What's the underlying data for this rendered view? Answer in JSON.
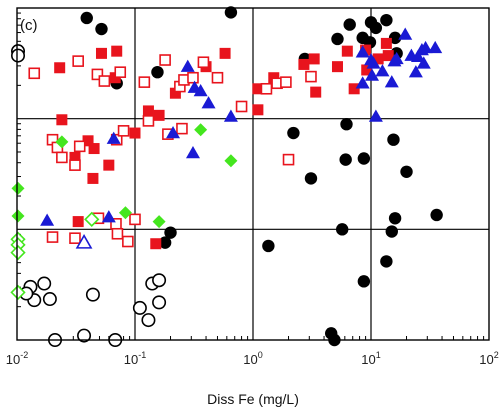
{
  "chart_data": {
    "type": "scatter",
    "panel_label": "(c)",
    "xlabel": "Diss Fe (mg/L)",
    "ylabel": "",
    "x_scale": "log",
    "xlim": [
      0.01,
      100
    ],
    "y_scale": "log",
    "ylim_decades": [
      0,
      3
    ],
    "grid": true,
    "x_ticks": [
      {
        "base": "10",
        "exp": "-2",
        "value": 0.01
      },
      {
        "base": "10",
        "exp": "-1",
        "value": 0.1
      },
      {
        "base": "10",
        "exp": "0",
        "value": 1
      },
      {
        "base": "10",
        "exp": "1",
        "value": 10
      },
      {
        "base": "10",
        "exp": "2",
        "value": 100
      }
    ],
    "series": [
      {
        "marker": "filled-circle",
        "color": "#000000",
        "points": [
          [
            0.039,
            2.91
          ],
          [
            0.052,
            2.81
          ],
          [
            0.07,
            2.32
          ],
          [
            0.155,
            2.42
          ],
          [
            0.65,
            2.96
          ],
          [
            2.75,
            2.54
          ],
          [
            5.2,
            2.72
          ],
          [
            6.6,
            2.85
          ],
          [
            8.5,
            2.73
          ],
          [
            10,
            2.87
          ],
          [
            11,
            2.82
          ],
          [
            13.5,
            2.89
          ],
          [
            16,
            2.73
          ],
          [
            9.8,
            2.69
          ],
          [
            16.5,
            2.59
          ],
          [
            15.5,
            1.81
          ],
          [
            8.7,
            1.64
          ],
          [
            6.2,
            1.95
          ],
          [
            2.2,
            1.87
          ],
          [
            3.1,
            1.46
          ],
          [
            6.1,
            1.63
          ],
          [
            5.7,
            1.0
          ],
          [
            13.5,
            0.71
          ],
          [
            20,
            1.52
          ],
          [
            36,
            1.13
          ],
          [
            16,
            1.1
          ],
          [
            15,
            0.98
          ],
          [
            1.35,
            0.85
          ],
          [
            0.2,
            0.97
          ],
          [
            0.18,
            0.88
          ],
          [
            8.7,
            0.53
          ],
          [
            4.6,
            0.06
          ],
          [
            4.9,
            0.0
          ]
        ]
      },
      {
        "marker": "open-circle",
        "color": "#000000",
        "points": [
          [
            0.0102,
            2.61
          ],
          [
            0.0102,
            2.57
          ],
          [
            0.013,
            0.48
          ],
          [
            0.017,
            0.51
          ],
          [
            0.019,
            0.37
          ],
          [
            0.014,
            0.36
          ],
          [
            0.012,
            0.42
          ],
          [
            0.044,
            0.41
          ],
          [
            0.037,
            0.04
          ],
          [
            0.021,
            0.0
          ],
          [
            0.068,
            0.0
          ],
          [
            0.11,
            0.29
          ],
          [
            0.14,
            0.51
          ],
          [
            0.16,
            0.54
          ],
          [
            0.13,
            0.18
          ],
          [
            0.16,
            0.34
          ]
        ]
      },
      {
        "marker": "filled-square",
        "color": "#e8141d",
        "points": [
          [
            0.052,
            2.59
          ],
          [
            0.07,
            2.61
          ],
          [
            0.023,
            2.46
          ],
          [
            0.068,
            2.37
          ],
          [
            0.13,
            2.07
          ],
          [
            0.1,
            1.87
          ],
          [
            0.024,
            1.99
          ],
          [
            0.04,
            1.8
          ],
          [
            0.045,
            1.73
          ],
          [
            0.031,
            1.65
          ],
          [
            0.044,
            1.46
          ],
          [
            0.06,
            1.58
          ],
          [
            0.16,
            2.03
          ],
          [
            0.22,
            2.23
          ],
          [
            0.4,
            2.47
          ],
          [
            0.58,
            2.59
          ],
          [
            1.1,
            2.27
          ],
          [
            1.5,
            2.37
          ],
          [
            2.7,
            2.49
          ],
          [
            3.3,
            2.54
          ],
          [
            5.2,
            2.47
          ],
          [
            6.3,
            2.61
          ],
          [
            9.0,
            2.62
          ],
          [
            9.2,
            2.44
          ],
          [
            11.5,
            2.54
          ],
          [
            13.5,
            2.68
          ],
          [
            14,
            2.57
          ],
          [
            7.2,
            2.27
          ],
          [
            3.4,
            2.24
          ],
          [
            1.1,
            2.08
          ],
          [
            0.033,
            1.07
          ],
          [
            0.15,
            0.87
          ]
        ]
      },
      {
        "marker": "open-square",
        "color": "#e8141d",
        "points": [
          [
            0.033,
            2.52
          ],
          [
            0.048,
            2.4
          ],
          [
            0.014,
            2.41
          ],
          [
            0.055,
            2.34
          ],
          [
            0.075,
            2.42
          ],
          [
            0.12,
            2.33
          ],
          [
            0.18,
            2.53
          ],
          [
            0.24,
            2.29
          ],
          [
            0.26,
            2.35
          ],
          [
            0.31,
            2.37
          ],
          [
            0.38,
            2.51
          ],
          [
            0.5,
            2.37
          ],
          [
            0.8,
            2.11
          ],
          [
            1.3,
            2.27
          ],
          [
            1.6,
            2.32
          ],
          [
            1.9,
            2.33
          ],
          [
            0.19,
            1.86
          ],
          [
            0.25,
            1.91
          ],
          [
            0.13,
            1.98
          ],
          [
            0.07,
            1.81
          ],
          [
            0.08,
            1.89
          ],
          [
            0.02,
            1.81
          ],
          [
            0.034,
            1.75
          ],
          [
            0.022,
            1.74
          ],
          [
            0.024,
            1.65
          ],
          [
            0.031,
            1.58
          ],
          [
            0.1,
            1.09
          ],
          [
            0.049,
            1.1
          ],
          [
            0.069,
            1.05
          ],
          [
            0.087,
            0.89
          ],
          [
            0.02,
            0.93
          ],
          [
            0.031,
            0.92
          ],
          [
            0.071,
            0.96
          ],
          [
            2.0,
            1.63
          ],
          [
            3.1,
            2.38
          ]
        ]
      },
      {
        "marker": "filled-triangle",
        "color": "#1a1ad4",
        "points": [
          [
            0.066,
            1.82
          ],
          [
            0.28,
            2.47
          ],
          [
            0.32,
            2.28
          ],
          [
            0.36,
            2.25
          ],
          [
            0.65,
            2.02
          ],
          [
            0.42,
            2.14
          ],
          [
            0.21,
            1.87
          ],
          [
            0.31,
            1.69
          ],
          [
            0.06,
            1.11
          ],
          [
            0.018,
            1.08
          ],
          [
            8.5,
            2.6
          ],
          [
            10,
            2.53
          ],
          [
            10.5,
            2.5
          ],
          [
            12.5,
            2.43
          ],
          [
            15.8,
            2.52
          ],
          [
            16.5,
            2.54
          ],
          [
            19.5,
            2.76
          ],
          [
            22,
            2.57
          ],
          [
            25,
            2.56
          ],
          [
            27,
            2.62
          ],
          [
            29,
            2.64
          ],
          [
            35,
            2.64
          ],
          [
            28,
            2.5
          ],
          [
            24,
            2.42
          ],
          [
            8.5,
            2.32
          ],
          [
            11,
            2.02
          ],
          [
            10.2,
            2.39
          ],
          [
            15,
            2.33
          ]
        ]
      },
      {
        "marker": "open-triangle",
        "color": "#1a1ad4",
        "points": [
          [
            0.037,
            0.88
          ]
        ]
      },
      {
        "marker": "filled-diamond",
        "color": "#44e61e",
        "points": [
          [
            0.0102,
            1.37
          ],
          [
            0.0102,
            1.12
          ],
          [
            0.024,
            1.79
          ],
          [
            0.083,
            1.15
          ],
          [
            0.16,
            1.07
          ],
          [
            0.36,
            1.9
          ],
          [
            0.65,
            1.62
          ]
        ]
      },
      {
        "marker": "open-diamond",
        "color": "#44e61e",
        "points": [
          [
            0.0102,
            0.91
          ],
          [
            0.0102,
            0.86
          ],
          [
            0.0102,
            0.79
          ],
          [
            0.0102,
            0.43
          ],
          [
            0.043,
            1.09
          ]
        ]
      }
    ]
  }
}
